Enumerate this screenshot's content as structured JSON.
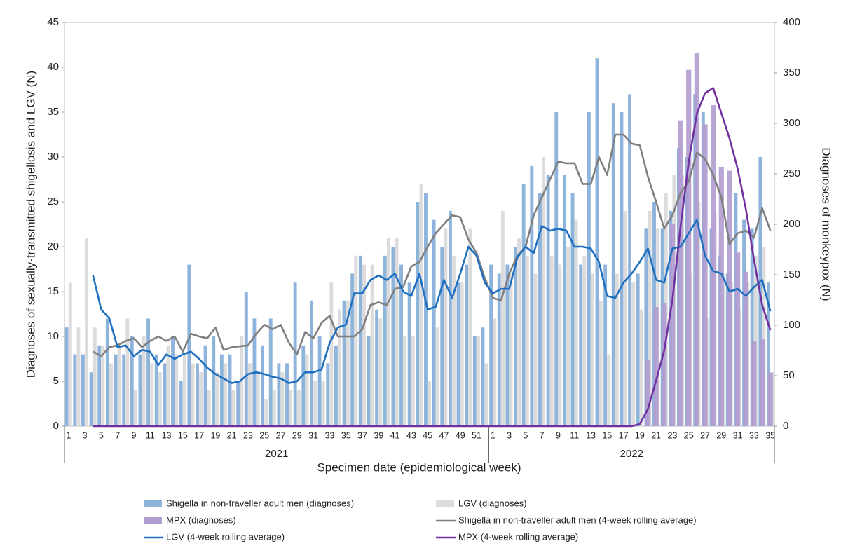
{
  "chart_data": {
    "type": "combo",
    "y_label": "Diagnoses of sexually-transmitted shigellosis and LGV (N)",
    "y2_label": "Diagnoses of monkeypox (N)",
    "x_label": "Specimen date (epidemiological week)",
    "ylim": [
      0,
      45
    ],
    "yticks": [
      0,
      5,
      10,
      15,
      20,
      25,
      30,
      35,
      40,
      45
    ],
    "y2lim": [
      0,
      400
    ],
    "y2ticks": [
      0,
      50,
      100,
      150,
      200,
      250,
      300,
      350,
      400
    ],
    "x_groups": [
      {
        "label": "2021",
        "size": 52
      },
      {
        "label": "2022",
        "size": 35
      }
    ],
    "categories": [
      "1",
      null,
      "3",
      null,
      "5",
      null,
      "7",
      null,
      "9",
      null,
      "11",
      null,
      "13",
      null,
      "15",
      null,
      "17",
      null,
      "19",
      null,
      "21",
      null,
      "23",
      null,
      "25",
      null,
      "27",
      null,
      "29",
      null,
      "31",
      null,
      "33",
      null,
      "35",
      null,
      "37",
      null,
      "39",
      null,
      "41",
      null,
      "43",
      null,
      "45",
      null,
      "47",
      null,
      "49",
      null,
      "51",
      null,
      "1",
      null,
      "3",
      null,
      "5",
      null,
      "7",
      null,
      "9",
      null,
      "11",
      null,
      "13",
      null,
      "15",
      null,
      "17",
      null,
      "19",
      null,
      "21",
      null,
      "23",
      null,
      "25",
      null,
      "27",
      null,
      "29",
      null,
      "31",
      null,
      "33",
      null,
      "35"
    ],
    "series": [
      {
        "name": "Shigella in non-traveller adult men (diagnoses)",
        "type": "bar",
        "color": "#8fb4dc",
        "values": [
          11,
          8,
          8,
          6,
          9,
          12,
          8,
          8,
          10,
          8,
          12,
          8,
          7,
          10,
          5,
          18,
          7,
          9,
          10,
          8,
          8,
          5,
          15,
          12,
          9,
          12,
          7,
          7,
          16,
          9,
          14,
          10,
          7,
          9,
          14,
          17,
          19,
          10,
          13,
          19,
          20,
          18,
          16,
          25,
          26,
          23,
          20,
          24,
          16,
          18,
          10,
          11,
          18,
          17,
          18,
          20,
          27,
          29,
          26,
          28,
          35,
          28,
          26,
          18,
          35,
          41,
          18,
          36,
          35,
          37,
          17,
          22,
          25,
          22,
          24,
          31,
          30,
          37,
          35,
          22,
          19,
          17,
          26,
          23,
          22,
          30,
          16
        ]
      },
      {
        "name": "LGV (diagnoses)",
        "type": "bar",
        "color": "#dcdcdc",
        "values": [
          16,
          11,
          21,
          11,
          9,
          7,
          9,
          12,
          4,
          10,
          7,
          6,
          9,
          8,
          8,
          7,
          6,
          4,
          6,
          7,
          4,
          10,
          7,
          6,
          3,
          4,
          6,
          4,
          4,
          8,
          5,
          5,
          16,
          13,
          14,
          19,
          18,
          18,
          12,
          21,
          21,
          10,
          10,
          27,
          5,
          11,
          22,
          19,
          16,
          22,
          10,
          7,
          12,
          24,
          17,
          21,
          19,
          17,
          30,
          19,
          18,
          20,
          23,
          19,
          17,
          14,
          8,
          17,
          24,
          16,
          13,
          24,
          22,
          26,
          28,
          28,
          17,
          25,
          12,
          24,
          17,
          16,
          13,
          16,
          19,
          20,
          6
        ]
      },
      {
        "name": "MPX (diagnoses)",
        "type": "bar",
        "axis": "y2",
        "color": "#b39ccf",
        "values": [
          0,
          0,
          0,
          0,
          0,
          0,
          0,
          0,
          0,
          0,
          0,
          0,
          0,
          0,
          0,
          0,
          0,
          0,
          0,
          0,
          0,
          0,
          0,
          0,
          0,
          0,
          0,
          0,
          0,
          0,
          0,
          0,
          0,
          0,
          0,
          0,
          0,
          0,
          0,
          0,
          0,
          0,
          0,
          0,
          0,
          0,
          0,
          0,
          0,
          0,
          0,
          0,
          0,
          0,
          0,
          0,
          0,
          0,
          0,
          0,
          0,
          0,
          0,
          0,
          0,
          0,
          0,
          0,
          0,
          0,
          0,
          66,
          118,
          122,
          200,
          303,
          353,
          370,
          299,
          318,
          257,
          253,
          172,
          153,
          84,
          86,
          53
        ]
      },
      {
        "name": "Shigella in non-traveller adult men (4-week rolling average)",
        "type": "line",
        "color": "#7f7f7f",
        "values": [
          null,
          null,
          null,
          8.3,
          7.8,
          8.8,
          9.0,
          9.5,
          9.8,
          8.8,
          9.5,
          10.0,
          9.5,
          10.0,
          8.3,
          10.3,
          10.0,
          9.8,
          11.0,
          8.5,
          8.8,
          8.9,
          9.0,
          10.3,
          11.3,
          10.8,
          11.3,
          9.3,
          8.0,
          10.5,
          9.8,
          11.5,
          12.3,
          10.0,
          10.0,
          10.0,
          10.8,
          13.5,
          13.8,
          13.5,
          15.3,
          15.5,
          17.8,
          18.3,
          20.0,
          21.5,
          22.5,
          23.5,
          23.3,
          20.8,
          19.3,
          16.5,
          14.3,
          14.0,
          17.0,
          19.0,
          20.0,
          23.5,
          25.5,
          27.5,
          29.5,
          29.3,
          29.3,
          27.0,
          27.0,
          30.0,
          28.0,
          32.5,
          32.5,
          31.5,
          31.3,
          27.8,
          25.0,
          22.0,
          23.5,
          26.0,
          27.3,
          30.5,
          29.8,
          28.0,
          25.5,
          20.3,
          21.5,
          21.8,
          21.0,
          24.3,
          21.8
        ]
      },
      {
        "name": "LGV (4-week rolling average)",
        "type": "line",
        "color": "#1f6fbf",
        "values": [
          null,
          null,
          null,
          16.8,
          13.0,
          12.0,
          8.8,
          9.0,
          7.8,
          8.5,
          8.3,
          6.8,
          8.0,
          7.5,
          8.0,
          8.3,
          7.5,
          6.5,
          5.8,
          5.3,
          4.8,
          5.0,
          5.8,
          6.0,
          5.8,
          5.5,
          5.3,
          4.8,
          5.0,
          6.0,
          6.0,
          6.3,
          9.3,
          11.0,
          11.3,
          14.8,
          14.8,
          16.3,
          16.8,
          16.3,
          17.0,
          15.0,
          14.5,
          17.0,
          13.0,
          13.3,
          16.3,
          14.3,
          17.0,
          20.0,
          19.0,
          16.0,
          14.8,
          15.3,
          15.3,
          18.8,
          20.0,
          19.3,
          22.3,
          21.8,
          22.0,
          21.8,
          20.0,
          20.0,
          19.8,
          18.3,
          14.5,
          14.3,
          16.0,
          17.0,
          18.3,
          19.8,
          16.3,
          16.0,
          19.8,
          20.0,
          21.5,
          23.0,
          19.0,
          17.3,
          17.0,
          15.0,
          15.3,
          14.5,
          15.5,
          16.3,
          12.8
        ]
      },
      {
        "name": "MPX (4-week rolling average)",
        "type": "line",
        "axis": "y2",
        "color": "#7030a0",
        "values": [
          null,
          null,
          null,
          0,
          0,
          0,
          0,
          0,
          0,
          0,
          0,
          0,
          0,
          0,
          0,
          0,
          0,
          0,
          0,
          0,
          0,
          0,
          0,
          0,
          0,
          0,
          0,
          0,
          0,
          0,
          0,
          0,
          0,
          0,
          0,
          0,
          0,
          0,
          0,
          0,
          0,
          0,
          0,
          0,
          0,
          0,
          0,
          0,
          0,
          0,
          0,
          0,
          0,
          0,
          0,
          0,
          0,
          0,
          0,
          0,
          0,
          0,
          0,
          0,
          0,
          0,
          0,
          0,
          0,
          0,
          2,
          17,
          45,
          75,
          125,
          198,
          262,
          310,
          330,
          335,
          310,
          285,
          255,
          215,
          165,
          120,
          95
        ]
      }
    ]
  }
}
